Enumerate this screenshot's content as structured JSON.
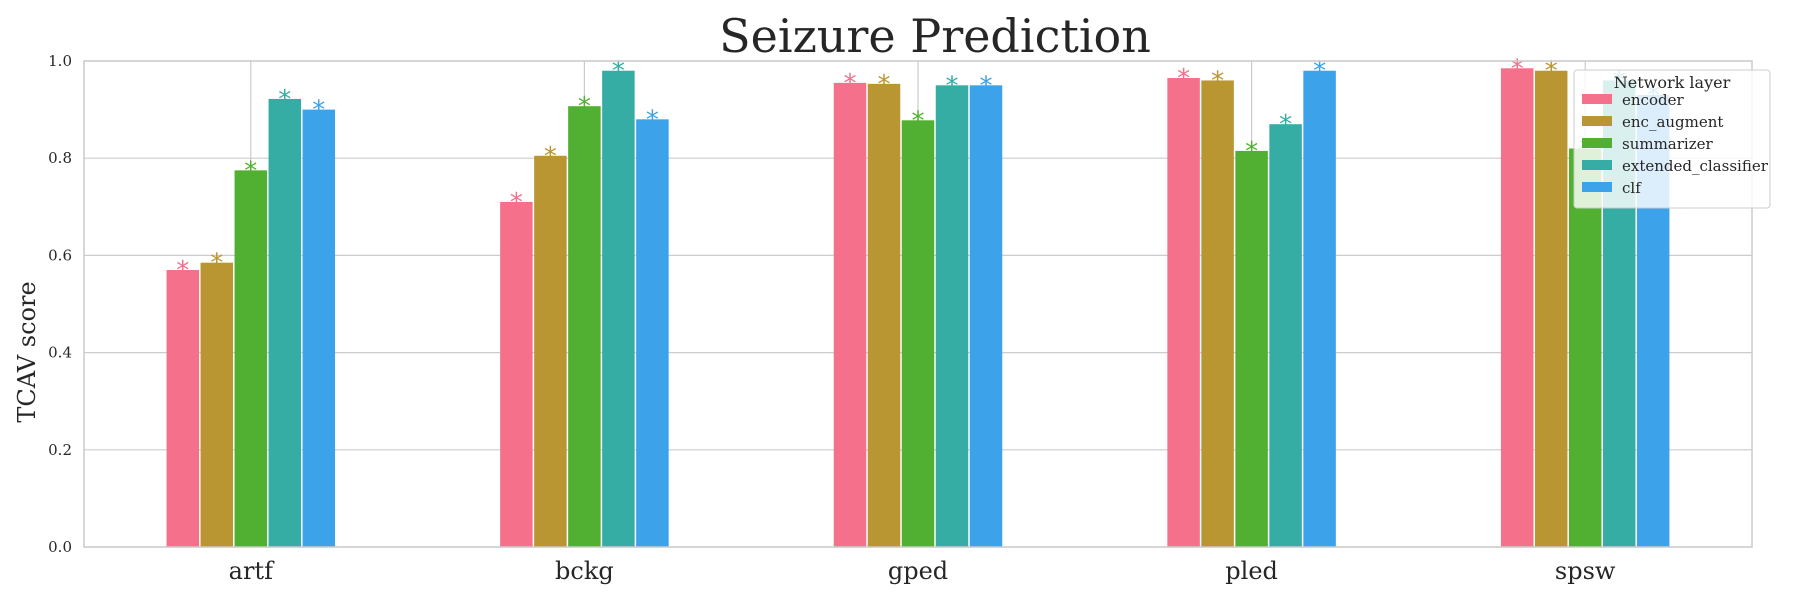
{
  "chart_data": {
    "type": "bar",
    "title": "Seizure Prediction",
    "xlabel": "",
    "ylabel": "TCAV score",
    "ylim": [
      0,
      1.0
    ],
    "yticks": [
      "0.0",
      "0.2",
      "0.4",
      "0.6",
      "0.8",
      "1.0"
    ],
    "categories": [
      "artf",
      "bckg",
      "gped",
      "pled",
      "spsw"
    ],
    "grid": true,
    "legend": {
      "title": "Network layer",
      "placement": "top-right"
    },
    "annotation_symbol": "*",
    "series": [
      {
        "name": "encoder",
        "color": "#f5708a",
        "values": [
          0.57,
          0.71,
          0.955,
          0.965,
          0.985
        ]
      },
      {
        "name": "enc_augment",
        "color": "#ba9633",
        "values": [
          0.585,
          0.805,
          0.953,
          0.96,
          0.98
        ]
      },
      {
        "name": "summarizer",
        "color": "#51b031",
        "values": [
          0.775,
          0.907,
          0.878,
          0.815,
          0.82
        ]
      },
      {
        "name": "extended_classifier",
        "color": "#36ada4",
        "values": [
          0.922,
          0.98,
          0.95,
          0.87,
          0.96
        ]
      },
      {
        "name": "clf",
        "color": "#3ca3ea",
        "values": [
          0.9,
          0.88,
          0.95,
          0.98,
          0.93
        ]
      }
    ]
  }
}
